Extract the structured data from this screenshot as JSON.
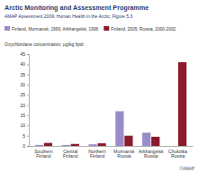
{
  "chart_data": {
    "type": "bar",
    "title": "Arctic Monitoring and Assessment Programme",
    "subtitle": "AMAP Assessment 2009: Human Health in the Arctic, Figure 5.3",
    "ylabel": "Oxychlordane concentration, µg/kg lipid",
    "categories": [
      "Southern Finland",
      "Central Finland",
      "Northern Finland",
      "Murmansk Russia",
      "Arkhangelsk Russia",
      "Chukotka Russia"
    ],
    "series": [
      {
        "name": "Finland, Murmansk, 1993; Arkhangelsk, 1996",
        "color": "#9a8cc8",
        "values": [
          0.5,
          0.5,
          0.8,
          17,
          6.5,
          null
        ]
      },
      {
        "name": "Finland, 2005; Russia, 2000-2002",
        "color": "#8b1a2b",
        "values": [
          1.5,
          1.0,
          1.3,
          5,
          4.5,
          41
        ]
      }
    ],
    "ylim": [
      0,
      45
    ],
    "yticks": [
      0,
      5,
      10,
      15,
      20,
      25,
      30,
      35,
      40,
      45
    ],
    "grid": false,
    "legend": "top",
    "annotations": [
      "©AMAP"
    ]
  }
}
